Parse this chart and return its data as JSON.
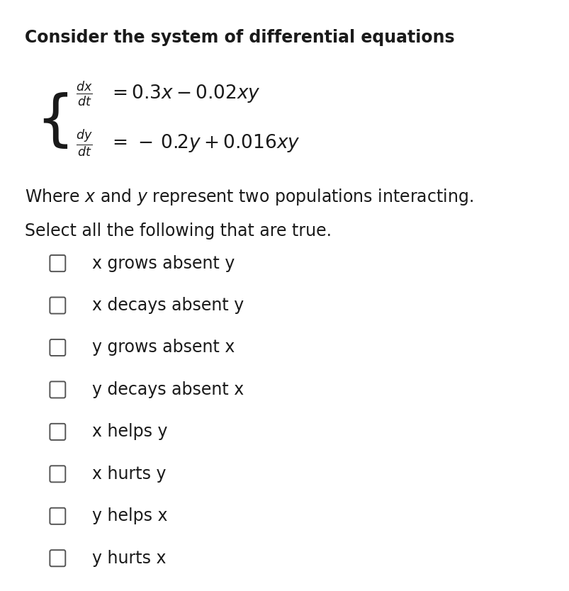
{
  "title": "Consider the system of differential equations",
  "equation1_lhs": "$\\frac{dx}{dt}$",
  "equation1_rhs": "$= 0.3x - 0.02xy$",
  "equation2_lhs": "$\\frac{dy}{dt}$",
  "equation2_rhs": "$= -\\ 0.2y + 0.016xy$",
  "where_text": "Where $x$ and $y$ represent two populations interacting.",
  "select_text": "Select all the following that are true.",
  "options": [
    "x grows absent y",
    "x decays absent y",
    "y grows absent x",
    "y decays absent x",
    "x helps y",
    "x hurts y",
    "y helps x",
    "y hurts x"
  ],
  "bg_color": "#ffffff",
  "text_color": "#1a1a1a",
  "title_fontsize": 17,
  "body_fontsize": 17,
  "checkbox_size": 0.022,
  "fig_width": 8.04,
  "fig_height": 8.34
}
